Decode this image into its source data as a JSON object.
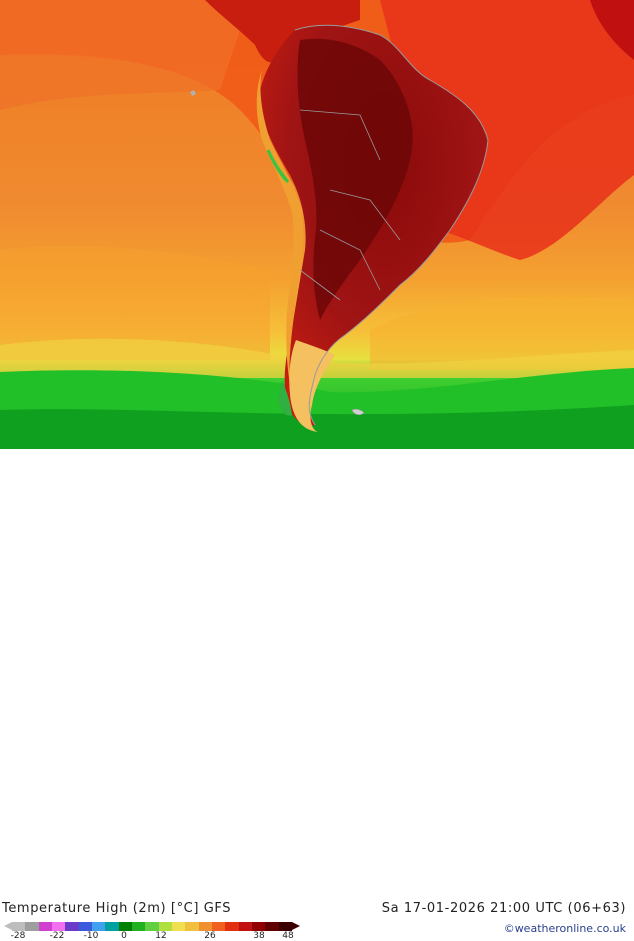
{
  "title": "Temperature High (2m) [°C] GFS",
  "valid_time": "Sa 17-01-2026 21:00 UTC (06+63)",
  "credit": "©weatheronline.co.uk",
  "legend": {
    "ticks": [
      "-28",
      "-22",
      "-10",
      "0",
      "12",
      "26",
      "38",
      "48"
    ],
    "colors": [
      "#bdbdbd",
      "#9e9e9e",
      "#d040d0",
      "#f070f0",
      "#6a3ac8",
      "#3c5adc",
      "#40a0f0",
      "#00a0a0",
      "#008000",
      "#20b020",
      "#60d040",
      "#b0e040",
      "#f0e050",
      "#f0c040",
      "#f09030",
      "#f06020",
      "#e03010",
      "#c01010",
      "#900000",
      "#600000",
      "#3a0000"
    ]
  },
  "map": {
    "ocean_color": "#f08a30",
    "land_hot_color": "#a01010",
    "southern_ocean_color": "#20d030"
  }
}
